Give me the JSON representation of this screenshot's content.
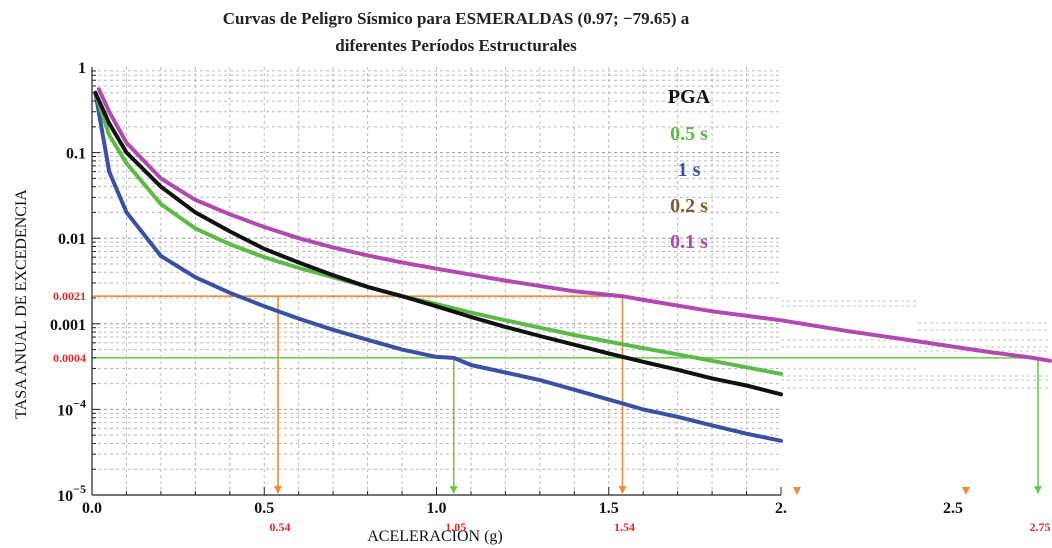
{
  "chart_data": {
    "type": "line",
    "title_line1": "Curvas de Peligro Sísmico para ESMERALDAS (0.97; −79.65) a",
    "title_line2": "diferentes Períodos Estructurales",
    "xlabel": "ACELERACION (g)",
    "ylabel": "TASA ANUAL DE EXCEDENCIA",
    "y_scale": "log",
    "xlim": [
      0,
      2.8
    ],
    "ylim": [
      1e-05,
      1
    ],
    "x_ticks": [
      {
        "value": 0,
        "label": "0.0"
      },
      {
        "value": 0.5,
        "label": "0.5"
      },
      {
        "value": 1.0,
        "label": "1.0"
      },
      {
        "value": 1.5,
        "label": "1.5"
      },
      {
        "value": 2.0,
        "label": "2."
      },
      {
        "value": 2.5,
        "label": "2.5"
      }
    ],
    "y_ticks": [
      {
        "value": 1,
        "label": "1"
      },
      {
        "value": 0.1,
        "label": "0.1"
      },
      {
        "value": 0.01,
        "label": "0.01"
      },
      {
        "value": 0.001,
        "label": "0.001"
      },
      {
        "value": 0.0001,
        "label": "10",
        "sup": "−4"
      },
      {
        "value": 1e-05,
        "label": "10",
        "sup": "−5"
      }
    ],
    "grid": true,
    "legend_position": "top-right",
    "series": [
      {
        "name": "PGA",
        "color": "#111111",
        "x": [
          0.01,
          0.05,
          0.1,
          0.2,
          0.3,
          0.4,
          0.5,
          0.6,
          0.7,
          0.8,
          0.9,
          1.0,
          1.1,
          1.2,
          1.3,
          1.4,
          1.5,
          1.6,
          1.7,
          1.8,
          1.9,
          2.0
        ],
        "y": [
          0.5,
          0.22,
          0.1,
          0.04,
          0.02,
          0.012,
          0.0075,
          0.0052,
          0.0037,
          0.0027,
          0.0021,
          0.0016,
          0.0012,
          0.00092,
          0.00072,
          0.00057,
          0.00045,
          0.00036,
          0.00029,
          0.00023,
          0.00019,
          0.00015
        ]
      },
      {
        "name": "0.5 s",
        "color": "#5dba4a",
        "x": [
          0.01,
          0.05,
          0.1,
          0.2,
          0.3,
          0.4,
          0.5,
          0.6,
          0.7,
          0.8,
          0.9,
          1.0,
          1.1,
          1.2,
          1.3,
          1.4,
          1.5,
          1.6,
          1.7,
          1.8,
          1.9,
          2.0
        ],
        "y": [
          0.5,
          0.16,
          0.075,
          0.025,
          0.013,
          0.0085,
          0.006,
          0.0045,
          0.0035,
          0.0027,
          0.0021,
          0.0017,
          0.00135,
          0.0011,
          0.0009,
          0.00074,
          0.00062,
          0.00052,
          0.00044,
          0.00037,
          0.00031,
          0.00026
        ]
      },
      {
        "name": "1 s",
        "color": "#3b4fa3",
        "x": [
          0.01,
          0.05,
          0.1,
          0.2,
          0.3,
          0.4,
          0.5,
          0.6,
          0.7,
          0.8,
          0.9,
          1.0,
          1.05,
          1.1,
          1.2,
          1.3,
          1.4,
          1.5,
          1.6,
          1.7,
          1.8,
          1.9,
          2.0
        ],
        "y": [
          0.5,
          0.06,
          0.02,
          0.0062,
          0.0035,
          0.0023,
          0.0016,
          0.00115,
          0.00085,
          0.00065,
          0.0005,
          0.00041,
          0.0004,
          0.00033,
          0.00027,
          0.00022,
          0.00017,
          0.00013,
          0.0001,
          8.2e-05,
          6.5e-05,
          5.2e-05,
          4.3e-05
        ]
      },
      {
        "name": "0.2 s",
        "color": "#8a5a2b",
        "x": [],
        "y": []
      },
      {
        "name": "0.1 s",
        "color": "#b04ab0",
        "x": [
          0.02,
          0.05,
          0.1,
          0.2,
          0.3,
          0.4,
          0.5,
          0.6,
          0.7,
          0.8,
          0.9,
          1.0,
          1.2,
          1.4,
          1.54,
          1.6,
          1.8,
          2.0,
          2.2,
          2.4,
          2.6,
          2.75,
          2.8
        ],
        "y": [
          0.55,
          0.3,
          0.13,
          0.05,
          0.028,
          0.019,
          0.0135,
          0.01,
          0.0078,
          0.0063,
          0.0052,
          0.0044,
          0.0032,
          0.0024,
          0.0021,
          0.0019,
          0.0014,
          0.0011,
          0.00082,
          0.00063,
          0.00048,
          0.0004,
          0.00037
        ]
      }
    ],
    "reference_lines": [
      {
        "y": 0.0021,
        "y_label": "0.0021",
        "color": "#ef8a3a",
        "x_values": [
          0.54,
          1.54
        ],
        "x_labels": [
          "0.54",
          "1.54"
        ],
        "x_end": 1.54
      },
      {
        "y": 0.0004,
        "y_label": "0.0004",
        "color": "#6bc94b",
        "x_values": [
          1.05,
          2.75
        ],
        "x_labels": [
          "1.05",
          "2.75"
        ],
        "x_end": 2.75
      }
    ]
  }
}
